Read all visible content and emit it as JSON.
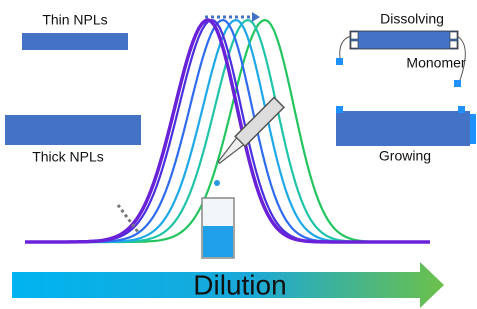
{
  "labels": {
    "thin": "Thin NPLs",
    "thick": "Thick NPLs",
    "dissolving": "Dissolving",
    "monomer": "Monomer",
    "growing": "Growing",
    "dilution": "Dilution"
  }
}
